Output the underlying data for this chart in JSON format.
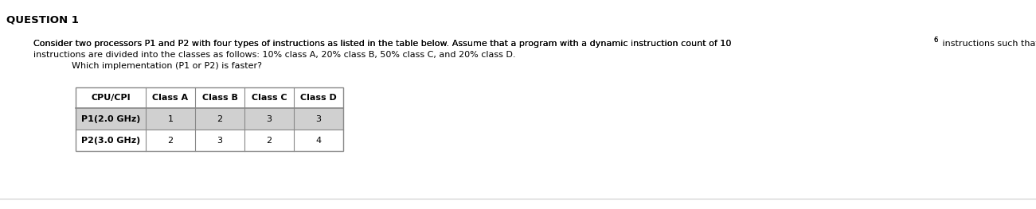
{
  "title": "QUESTION 1",
  "title_color": "#000000",
  "title_fontsize": 9.5,
  "body_text_line1": "Consider two processors P1 and P2 with four types of instructions as listed in the table below. Assume that a program with a dynamic instruction count of 10",
  "body_text_line1_super": "6",
  "body_text_line1_end": " instructions such that the",
  "body_text_line2": "instructions are divided into the classes as follows: 10% class A, 20% class B, 50% class C, and 20% class D.",
  "body_text_line3": "Which implementation (P1 or P2) is faster?",
  "body_fontsize": 8.0,
  "body_color": "#000000",
  "table_headers": [
    "CPU/CPI",
    "Class A",
    "Class B",
    "Class C",
    "Class D"
  ],
  "table_rows": [
    [
      "P1(2.0 GHz)",
      "1",
      "2",
      "3",
      "3"
    ],
    [
      "P2(3.0 GHz)",
      "2",
      "3",
      "2",
      "4"
    ]
  ],
  "table_header_bg": "#FFFFFF",
  "table_row1_bg": "#D0D0D0",
  "table_row2_bg": "#FFFFFF",
  "table_border_color": "#888888",
  "table_fontsize": 8.0,
  "background_color": "#FFFFFF",
  "fig_width": 13.01,
  "fig_height": 2.63,
  "dpi": 100
}
